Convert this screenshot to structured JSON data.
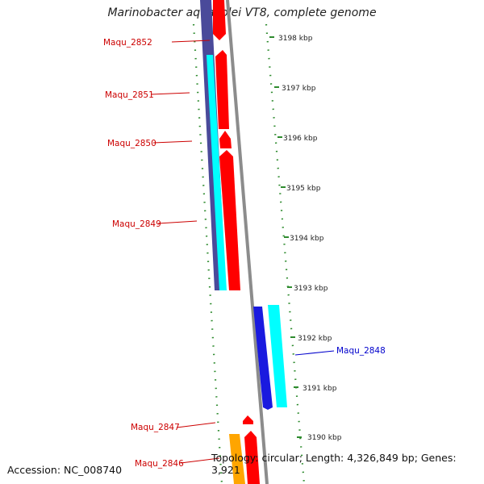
{
  "title": "Marinobacter aquaeolei VT8, complete genome",
  "footer": {
    "accession": "Accession: NC_008740",
    "topology": "Topology: circular; Length: 4,326,849 bp; Genes: 3,921"
  },
  "colors": {
    "backbone": "#8c8c8c",
    "tick": "#2e8b2e",
    "cds": "#ff0000",
    "gene": "#00ffff",
    "gene_dark": "#4a4a9a",
    "minus_cds": "#1a1adf",
    "rna": "#ffa500",
    "label_plus": "#cc0000",
    "label_minus": "#0000cc"
  },
  "scale": {
    "unit": "kbp",
    "ticks": [
      {
        "value": 3198,
        "label": "3198 kbp"
      },
      {
        "value": 3197,
        "label": "3197 kbp"
      },
      {
        "value": 3196,
        "label": "3196 kbp"
      },
      {
        "value": 3195,
        "label": "3195 kbp"
      },
      {
        "value": 3194,
        "label": "3194 kbp"
      },
      {
        "value": 3193,
        "label": "3193 kbp"
      },
      {
        "value": 3192,
        "label": "3192 kbp"
      },
      {
        "value": 3191,
        "label": "3191 kbp"
      },
      {
        "value": 3190,
        "label": "3190 kbp"
      }
    ]
  },
  "genes": [
    {
      "label": "Maqu_2852",
      "strand": "+",
      "start_kbp": 3197.9,
      "end_kbp": 3198.7
    },
    {
      "label": "Maqu_2851",
      "strand": "+",
      "start_kbp": 3196.15,
      "end_kbp": 3197.75
    },
    {
      "label": "Maqu_2850",
      "strand": "+",
      "start_kbp": 3195.8,
      "end_kbp": 3196.15
    },
    {
      "label": "Maqu_2849",
      "strand": "+",
      "start_kbp": 3193.1,
      "end_kbp": 3195.8
    },
    {
      "label": "Maqu_2848",
      "strand": "-",
      "start_kbp": 3190.6,
      "end_kbp": 3192.5
    },
    {
      "label": "Maqu_2847",
      "strand": "+",
      "start_kbp": 3190.15,
      "end_kbp": 3190.3
    },
    {
      "label": "Maqu_2846",
      "strand": "+",
      "start_kbp": 3189.6,
      "end_kbp": 3190.05
    }
  ]
}
